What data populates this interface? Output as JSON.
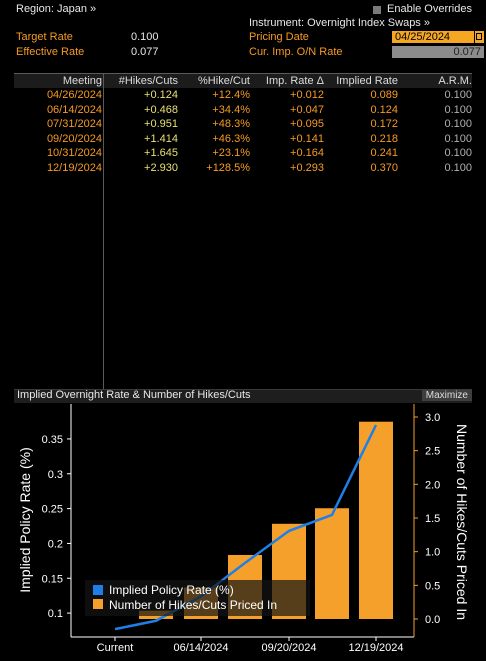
{
  "header": {
    "region": "Region: Japan »",
    "enable_overrides": "Enable Overrides",
    "instrument": "Instrument: Overnight Index Swaps »",
    "target_rate_label": "Target Rate",
    "target_rate_value": "0.100",
    "pricing_date_label": "Pricing Date",
    "pricing_date_value": "04/25/2024",
    "effective_rate_label": "Effective Rate",
    "effective_rate_value": "0.077",
    "cur_imp_label": "Cur. Imp. O/N Rate",
    "cur_imp_value": "0.077"
  },
  "table": {
    "columns": [
      "Meeting",
      "#Hikes/Cuts",
      "%Hike/Cut",
      "Imp. Rate Δ",
      "Implied Rate",
      "A.R.M."
    ],
    "rows": [
      [
        "04/26/2024",
        "+0.124",
        "+12.4%",
        "+0.012",
        "0.089",
        "0.100"
      ],
      [
        "06/14/2024",
        "+0.468",
        "+34.4%",
        "+0.047",
        "0.124",
        "0.100"
      ],
      [
        "07/31/2024",
        "+0.951",
        "+48.3%",
        "+0.095",
        "0.172",
        "0.100"
      ],
      [
        "09/20/2024",
        "+1.414",
        "+46.3%",
        "+0.141",
        "0.218",
        "0.100"
      ],
      [
        "10/31/2024",
        "+1.645",
        "+23.1%",
        "+0.164",
        "0.241",
        "0.100"
      ],
      [
        "12/19/2024",
        "+2.930",
        "+128.5%",
        "+0.293",
        "0.370",
        "0.100"
      ]
    ]
  },
  "panel": {
    "title": "Implied Overnight Rate & Number of Hikes/Cuts",
    "maximize": "Maximize"
  },
  "chart_data": {
    "type": "bar",
    "categories": [
      "Current",
      "04/26/2024",
      "06/14/2024",
      "07/31/2024",
      "09/20/2024",
      "10/31/2024",
      "12/19/2024"
    ],
    "x_tick_labels": [
      "Current",
      "06/14/2024",
      "09/20/2024",
      "12/19/2024"
    ],
    "series": [
      {
        "name": "Implied Policy Rate (%)",
        "kind": "line",
        "axis": "left",
        "color": "#1f7fe8",
        "values": [
          0.077,
          0.089,
          0.124,
          0.172,
          0.218,
          0.241,
          0.37
        ]
      },
      {
        "name": "Number of Hikes/Cuts Priced In",
        "kind": "bar",
        "axis": "right",
        "color": "#f5a02a",
        "values": [
          null,
          0.124,
          0.468,
          0.951,
          1.414,
          1.645,
          2.93
        ]
      }
    ],
    "ylabel_left": "Implied Policy Rate (%)",
    "ylabel_right": "Number of Hikes/Cuts Priced In",
    "ylim_left": [
      0.07,
      0.37
    ],
    "yticks_left": [
      "0.1",
      "0.15",
      "0.2",
      "0.25",
      "0.3",
      "0.35"
    ],
    "ylim_right": [
      0,
      3
    ],
    "yticks_right": [
      "0.0",
      "0.5",
      "1.0",
      "1.5",
      "2.0",
      "2.5",
      "3.0"
    ],
    "legend_position": "bottom-left",
    "grid": false
  }
}
